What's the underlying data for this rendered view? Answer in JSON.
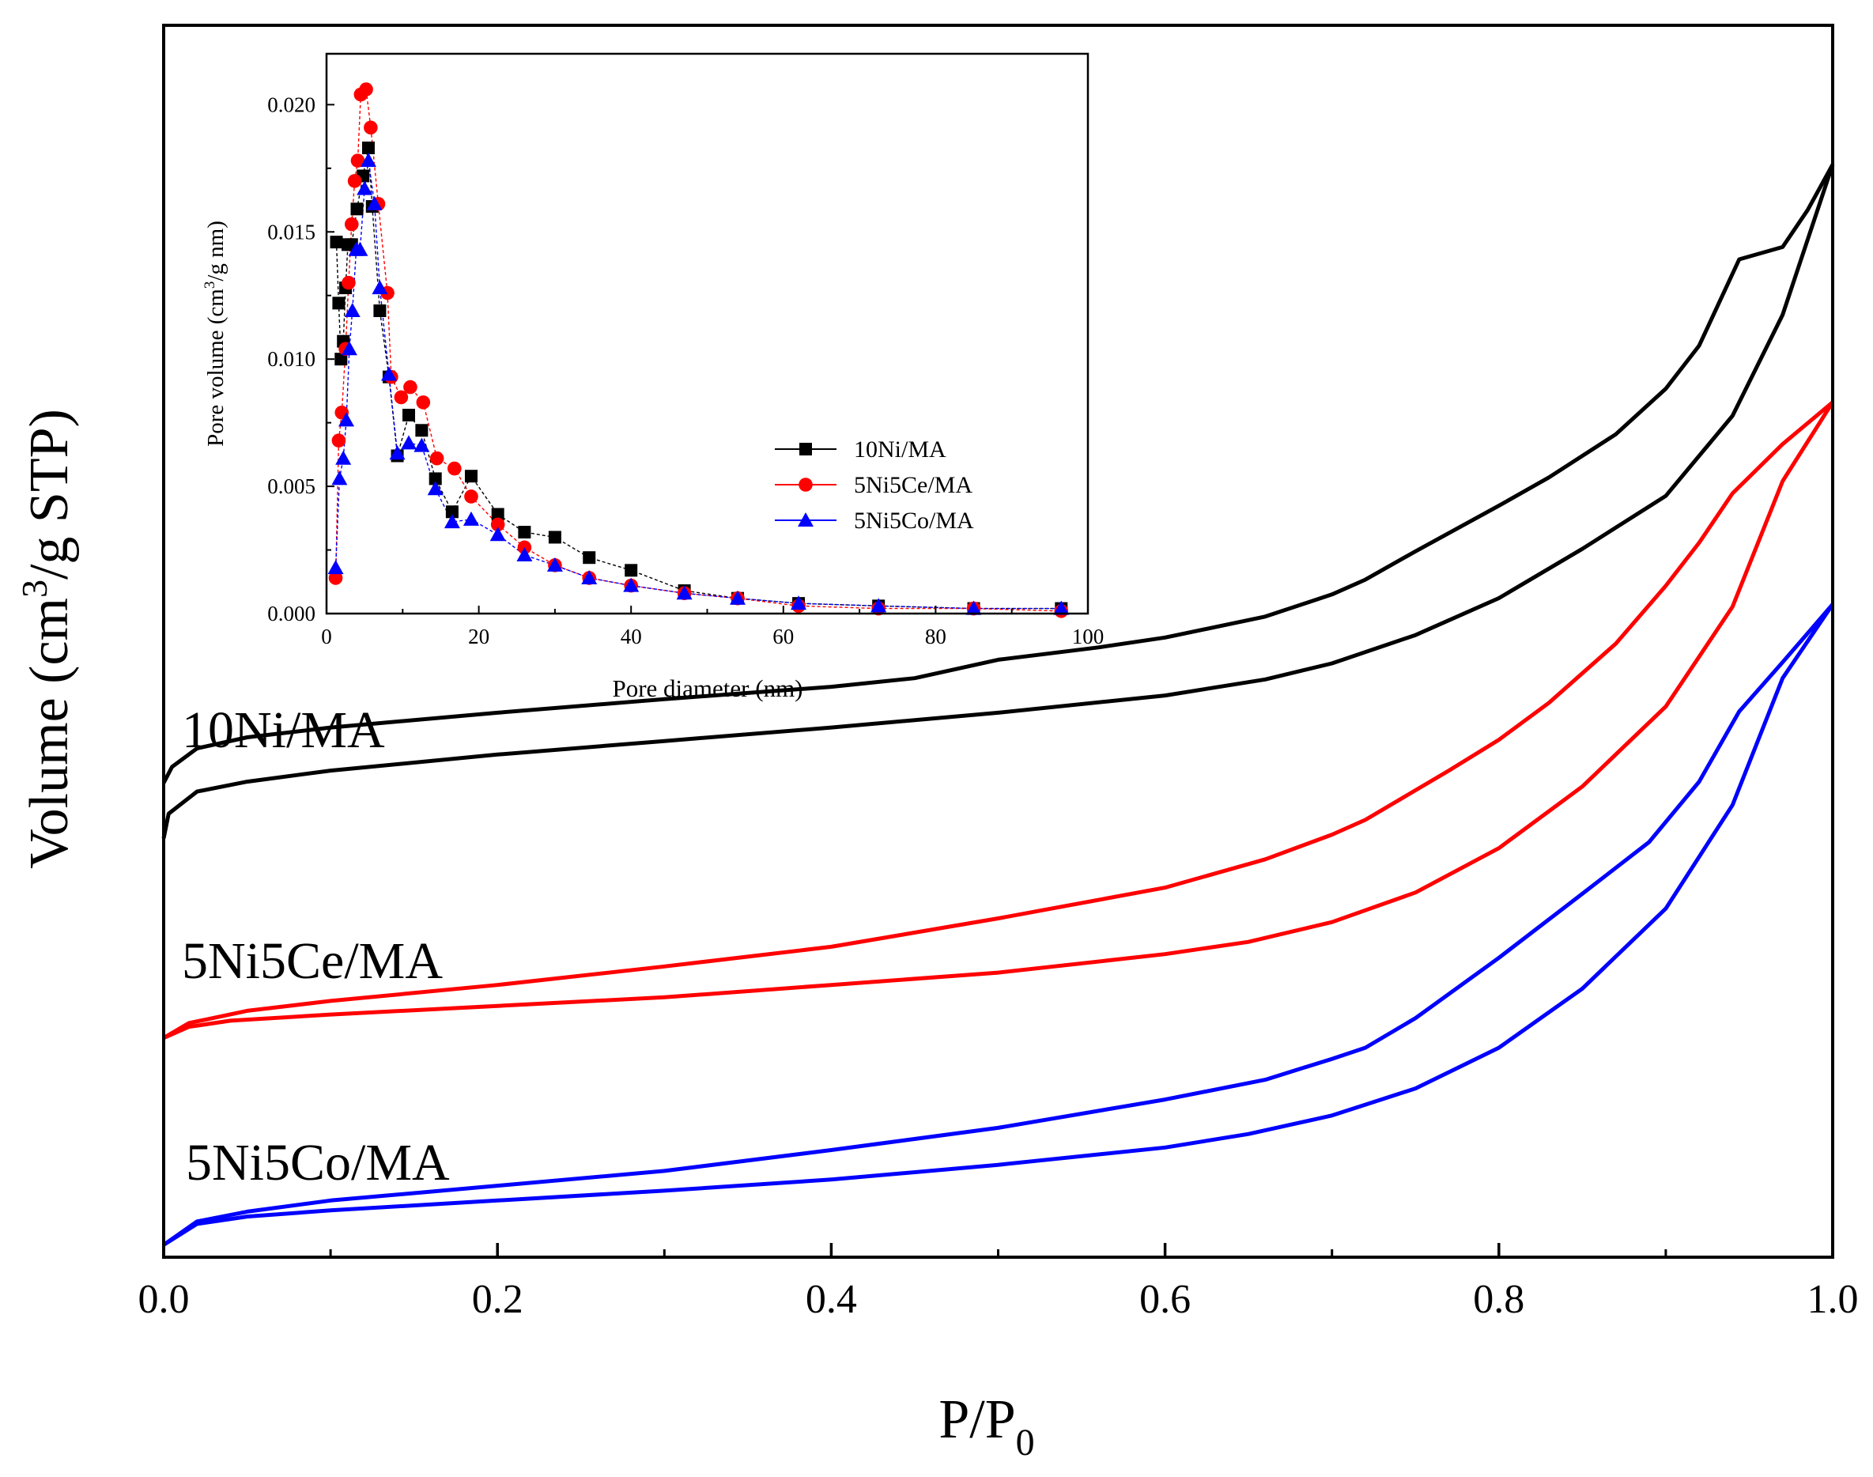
{
  "chart_data": [
    {
      "type": "line",
      "name": "main-isotherm",
      "title": "",
      "xlabel": "P/P",
      "xlabel_sub": "0",
      "ylabel_pre": "Volume (cm",
      "ylabel_sup": "3",
      "ylabel_post": "/g STP)",
      "xlim": [
        0,
        1
      ],
      "ylim": [
        0,
        100
      ],
      "x_ticks": [
        0.0,
        0.2,
        0.4,
        0.6,
        0.8,
        1.0
      ],
      "x_tick_labels": [
        "0.0",
        "0.2",
        "0.4",
        "0.6",
        "0.8",
        "1.0"
      ],
      "y_ticks_shown": false,
      "series": [
        {
          "name": "10Ni/MA",
          "label": "10Ni/MA",
          "color": "#000000",
          "adsorption": [
            [
              0,
              34
            ],
            [
              0.003,
              36
            ],
            [
              0.02,
              37.8
            ],
            [
              0.05,
              38.6
            ],
            [
              0.1,
              39.5
            ],
            [
              0.2,
              40.8
            ],
            [
              0.3,
              41.9
            ],
            [
              0.4,
              43
            ],
            [
              0.5,
              44.2
            ],
            [
              0.6,
              45.6
            ],
            [
              0.66,
              46.9
            ],
            [
              0.7,
              48.2
            ],
            [
              0.75,
              50.5
            ],
            [
              0.8,
              53.5
            ],
            [
              0.85,
              57.5
            ],
            [
              0.9,
              61.8
            ],
            [
              0.94,
              68.3
            ],
            [
              0.97,
              76.5
            ],
            [
              1.0,
              88.7
            ]
          ],
          "desorption": [
            [
              1.0,
              88.7
            ],
            [
              0.985,
              85
            ],
            [
              0.97,
              82
            ],
            [
              0.944,
              81
            ],
            [
              0.92,
              74
            ],
            [
              0.9,
              70.5
            ],
            [
              0.87,
              66.8
            ],
            [
              0.83,
              63.3
            ],
            [
              0.8,
              61
            ],
            [
              0.75,
              57.3
            ],
            [
              0.72,
              55
            ],
            [
              0.7,
              53.8
            ],
            [
              0.66,
              52
            ],
            [
              0.6,
              50.3
            ],
            [
              0.56,
              49.5
            ],
            [
              0.5,
              48.5
            ],
            [
              0.45,
              47
            ],
            [
              0.4,
              46.3
            ],
            [
              0.35,
              45.8
            ],
            [
              0.3,
              45.3
            ],
            [
              0.2,
              44.2
            ],
            [
              0.1,
              43
            ],
            [
              0.05,
              42.2
            ],
            [
              0.02,
              41.3
            ],
            [
              0.005,
              39.8
            ],
            [
              0,
              38.5
            ]
          ]
        },
        {
          "name": "5Ni5Ce/MA",
          "label": "5Ni5Ce/MA",
          "color": "#ff0000",
          "adsorption": [
            [
              0,
              17.8
            ],
            [
              0.015,
              18.7
            ],
            [
              0.04,
              19.2
            ],
            [
              0.1,
              19.7
            ],
            [
              0.2,
              20.4
            ],
            [
              0.3,
              21.1
            ],
            [
              0.4,
              22.1
            ],
            [
              0.5,
              23.1
            ],
            [
              0.6,
              24.6
            ],
            [
              0.65,
              25.6
            ],
            [
              0.7,
              27.2
            ],
            [
              0.75,
              29.6
            ],
            [
              0.8,
              33.2
            ],
            [
              0.85,
              38.2
            ],
            [
              0.9,
              44.7
            ],
            [
              0.94,
              52.8
            ],
            [
              0.97,
              63
            ],
            [
              1.0,
              69.4
            ]
          ],
          "desorption": [
            [
              1.0,
              69.4
            ],
            [
              0.97,
              66
            ],
            [
              0.94,
              62
            ],
            [
              0.92,
              58
            ],
            [
              0.9,
              54.5
            ],
            [
              0.87,
              49.8
            ],
            [
              0.83,
              45
            ],
            [
              0.8,
              42
            ],
            [
              0.77,
              39.5
            ],
            [
              0.72,
              35.5
            ],
            [
              0.7,
              34.3
            ],
            [
              0.66,
              32.3
            ],
            [
              0.6,
              30
            ],
            [
              0.5,
              27.5
            ],
            [
              0.4,
              25.2
            ],
            [
              0.3,
              23.6
            ],
            [
              0.2,
              22.1
            ],
            [
              0.1,
              20.8
            ],
            [
              0.05,
              20
            ],
            [
              0.015,
              19
            ],
            [
              0,
              17.8
            ]
          ]
        },
        {
          "name": "5Ni5Co/MA",
          "label": "5Ni5Co/MA",
          "color": "#0000ff",
          "adsorption": [
            [
              0,
              1
            ],
            [
              0.02,
              2.7
            ],
            [
              0.05,
              3.3
            ],
            [
              0.1,
              3.8
            ],
            [
              0.2,
              4.6
            ],
            [
              0.3,
              5.4
            ],
            [
              0.4,
              6.3
            ],
            [
              0.5,
              7.5
            ],
            [
              0.6,
              8.9
            ],
            [
              0.65,
              10
            ],
            [
              0.7,
              11.5
            ],
            [
              0.75,
              13.7
            ],
            [
              0.8,
              17
            ],
            [
              0.85,
              21.8
            ],
            [
              0.9,
              28.3
            ],
            [
              0.94,
              36.7
            ],
            [
              0.97,
              47
            ],
            [
              1.0,
              53
            ]
          ],
          "desorption": [
            [
              1.0,
              53
            ],
            [
              0.97,
              48.3
            ],
            [
              0.944,
              44.3
            ],
            [
              0.92,
              38.6
            ],
            [
              0.89,
              33.7
            ],
            [
              0.85,
              29.5
            ],
            [
              0.8,
              24.3
            ],
            [
              0.75,
              19.4
            ],
            [
              0.72,
              17
            ],
            [
              0.7,
              16.1
            ],
            [
              0.66,
              14.4
            ],
            [
              0.6,
              12.8
            ],
            [
              0.5,
              10.5
            ],
            [
              0.4,
              8.7
            ],
            [
              0.3,
              7
            ],
            [
              0.2,
              5.8
            ],
            [
              0.1,
              4.6
            ],
            [
              0.05,
              3.7
            ],
            [
              0.02,
              2.9
            ],
            [
              0,
              1
            ]
          ]
        }
      ]
    },
    {
      "type": "scatter",
      "name": "inset-pore-size-distribution",
      "title": "",
      "xlabel": "Pore diameter (nm)",
      "ylabel_pre": "Pore volume (cm",
      "ylabel_sup": "3",
      "ylabel_post": "/g nm)",
      "xlim": [
        0,
        100
      ],
      "ylim": [
        0,
        0.022
      ],
      "x_ticks": [
        0,
        20,
        40,
        60,
        80,
        100
      ],
      "x_tick_labels": [
        "0",
        "20",
        "40",
        "60",
        "80",
        "100"
      ],
      "y_ticks": [
        0,
        0.005,
        0.01,
        0.015,
        0.02
      ],
      "y_tick_labels": [
        "0.000",
        "0.005",
        "0.010",
        "0.015",
        "0.020"
      ],
      "legend_position": "center-right",
      "series": [
        {
          "name": "10Ni/MA",
          "label": "10Ni/MA",
          "marker": "square",
          "color": "#000000",
          "line_color": "#000000",
          "points": [
            [
              1.3,
              0.0146
            ],
            [
              1.6,
              0.0122
            ],
            [
              1.9,
              0.01
            ],
            [
              2.2,
              0.0107
            ],
            [
              2.5,
              0.0128
            ],
            [
              2.8,
              0.0145
            ],
            [
              3.3,
              0.0145
            ],
            [
              4.0,
              0.0159
            ],
            [
              4.8,
              0.0172
            ],
            [
              5.5,
              0.0183
            ],
            [
              6.0,
              0.016
            ],
            [
              7.0,
              0.0119
            ],
            [
              8.2,
              0.0093
            ],
            [
              9.3,
              0.0062
            ],
            [
              10.8,
              0.0078
            ],
            [
              12.5,
              0.0072
            ],
            [
              14.3,
              0.0053
            ],
            [
              16.5,
              0.004
            ],
            [
              19.0,
              0.0054
            ],
            [
              22.5,
              0.0039
            ],
            [
              26.0,
              0.0032
            ],
            [
              30.0,
              0.003
            ],
            [
              34.5,
              0.0022
            ],
            [
              40.0,
              0.0017
            ],
            [
              47.0,
              0.0009
            ],
            [
              54.0,
              0.0006
            ],
            [
              62.0,
              0.0004
            ],
            [
              72.5,
              0.0003
            ],
            [
              85.0,
              0.0002
            ],
            [
              96.5,
              0.0002
            ]
          ]
        },
        {
          "name": "5Ni5Ce/MA",
          "label": "5Ni5Ce/MA",
          "marker": "circle",
          "color": "#ff0000",
          "line_color": "#ff0000",
          "points": [
            [
              1.2,
              0.0014
            ],
            [
              1.6,
              0.0068
            ],
            [
              2.0,
              0.0079
            ],
            [
              2.5,
              0.0104
            ],
            [
              2.9,
              0.013
            ],
            [
              3.3,
              0.0153
            ],
            [
              3.7,
              0.017
            ],
            [
              4.1,
              0.0178
            ],
            [
              4.5,
              0.0204
            ],
            [
              5.2,
              0.0206
            ],
            [
              5.8,
              0.0191
            ],
            [
              6.8,
              0.0161
            ],
            [
              8.0,
              0.0126
            ],
            [
              8.5,
              0.0093
            ],
            [
              9.8,
              0.0085
            ],
            [
              11.0,
              0.0089
            ],
            [
              12.7,
              0.0083
            ],
            [
              14.5,
              0.0061
            ],
            [
              16.8,
              0.0057
            ],
            [
              19.0,
              0.0046
            ],
            [
              22.5,
              0.0035
            ],
            [
              26.0,
              0.0026
            ],
            [
              30.0,
              0.0019
            ],
            [
              34.5,
              0.0014
            ],
            [
              40.0,
              0.0011
            ],
            [
              47.0,
              0.0008
            ],
            [
              54.0,
              0.0006
            ],
            [
              62.0,
              0.0003
            ],
            [
              72.5,
              0.0002
            ],
            [
              85.0,
              0.0002
            ],
            [
              96.5,
              0.0001
            ]
          ]
        },
        {
          "name": "5Ni5Co/MA",
          "label": "5Ni5Co/MA",
          "marker": "triangle",
          "color": "#0000ff",
          "line_color": "#0000ff",
          "points": [
            [
              1.2,
              0.0018
            ],
            [
              1.7,
              0.0053
            ],
            [
              2.2,
              0.0061
            ],
            [
              2.6,
              0.0076
            ],
            [
              3.0,
              0.0104
            ],
            [
              3.4,
              0.0119
            ],
            [
              3.9,
              0.0143
            ],
            [
              4.4,
              0.0143
            ],
            [
              5.0,
              0.0167
            ],
            [
              5.5,
              0.0178
            ],
            [
              6.3,
              0.0161
            ],
            [
              7.0,
              0.0128
            ],
            [
              8.2,
              0.0094
            ],
            [
              9.3,
              0.0063
            ],
            [
              10.8,
              0.0067
            ],
            [
              12.5,
              0.0066
            ],
            [
              14.3,
              0.0049
            ],
            [
              16.5,
              0.0036
            ],
            [
              19.0,
              0.0037
            ],
            [
              22.5,
              0.0031
            ],
            [
              26.0,
              0.0023
            ],
            [
              30.0,
              0.0019
            ],
            [
              34.5,
              0.0014
            ],
            [
              40.0,
              0.0011
            ],
            [
              47.0,
              0.0008
            ],
            [
              54.0,
              0.0006
            ],
            [
              62.0,
              0.0004
            ],
            [
              72.5,
              0.0003
            ],
            [
              85.0,
              0.0002
            ],
            [
              96.5,
              0.0002
            ]
          ]
        }
      ]
    }
  ]
}
